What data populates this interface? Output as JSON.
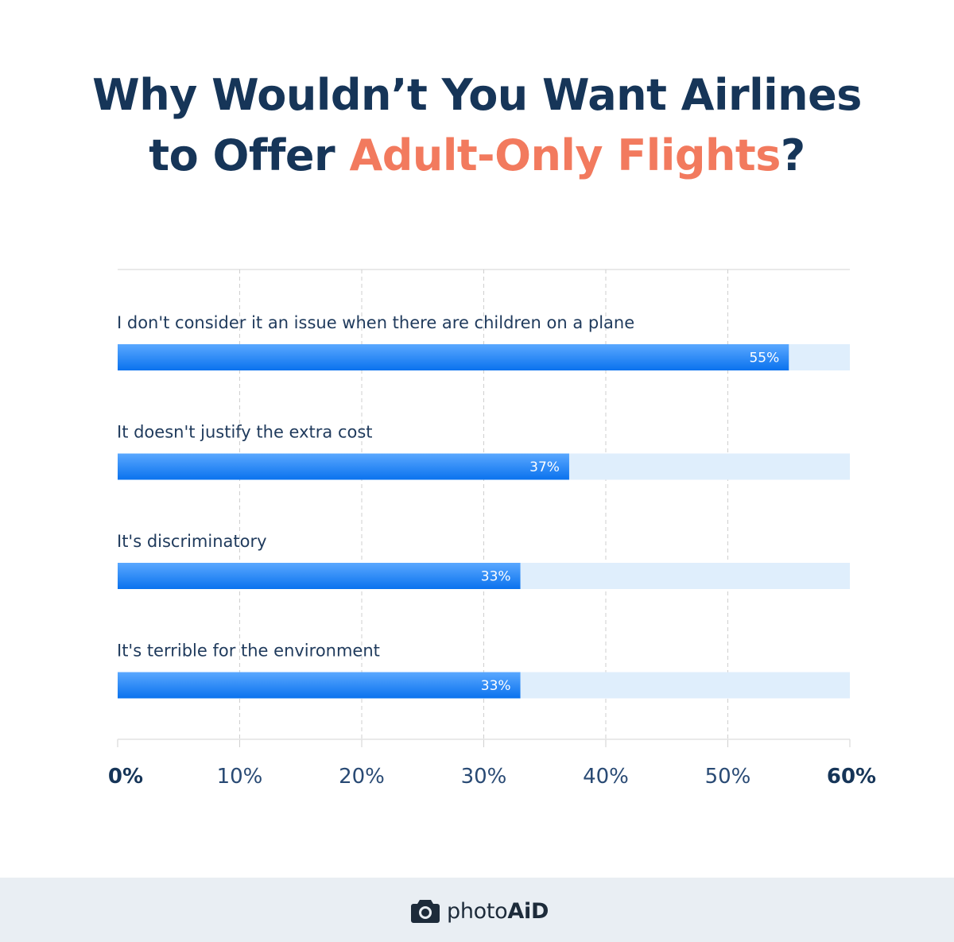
{
  "title": {
    "line1": "Why Wouldn’t You Want Airlines",
    "line2_prefix": "to Offer ",
    "line2_accent": "Adult-Only Flights",
    "line2_suffix": "?"
  },
  "colors": {
    "title": "#163558",
    "accent": "#f27a5e",
    "bar_top": "#5aa8ff",
    "bar_bottom": "#0a72ee",
    "track": "#dfeefc",
    "grid": "#cfcfcf",
    "label": "#1f3a5c"
  },
  "chart_data": {
    "type": "bar",
    "orientation": "horizontal",
    "categories": [
      "I don't consider it an issue when there are children on a plane",
      "It doesn't justify the extra cost",
      "It's discriminatory",
      "It's terrible for the environment"
    ],
    "values": [
      55,
      37,
      33,
      33
    ],
    "value_labels": [
      "55%",
      "37%",
      "33%",
      "33%"
    ],
    "xlim": [
      0,
      60
    ],
    "x_ticks": [
      0,
      10,
      20,
      30,
      40,
      50,
      60
    ],
    "x_tick_labels": [
      "0%",
      "10%",
      "20%",
      "30%",
      "40%",
      "50%",
      "60%"
    ],
    "grid": "vertical dashed"
  },
  "footer": {
    "logo_icon": "camera-icon",
    "brand_light": "photo",
    "brand_bold": "AiD"
  }
}
